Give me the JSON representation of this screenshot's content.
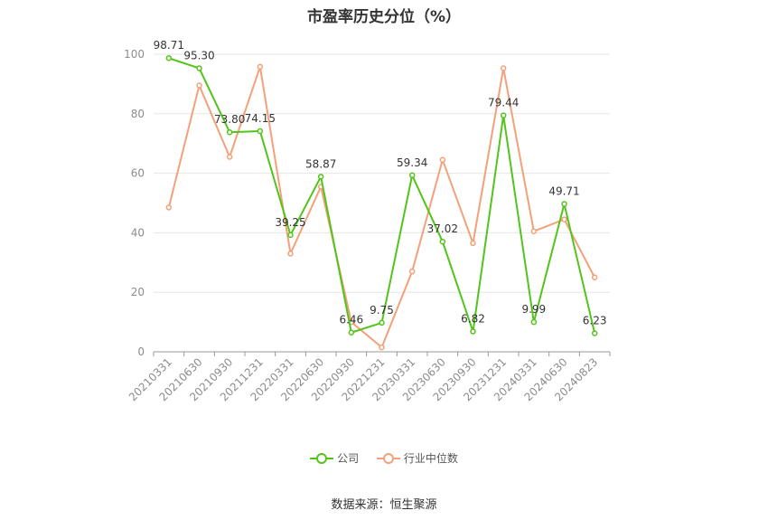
{
  "chart_data": {
    "type": "line",
    "title": "市盈率历史分位（%）",
    "categories": [
      "20210331",
      "20210630",
      "20210930",
      "20211231",
      "20220331",
      "20220630",
      "20220930",
      "20221231",
      "20230331",
      "20230630",
      "20230930",
      "20231231",
      "20240331",
      "20240630",
      "20240823"
    ],
    "series": [
      {
        "name": "公司",
        "color": "#52c41a",
        "values": [
          98.71,
          95.3,
          73.8,
          74.15,
          39.25,
          58.87,
          6.46,
          9.75,
          59.34,
          37.02,
          6.82,
          79.44,
          9.99,
          49.71,
          6.23
        ],
        "labels": [
          "98.71",
          "95.30",
          "73.80",
          "74.15",
          "39.25",
          "58.87",
          "6.46",
          "9.75",
          "59.34",
          "37.02",
          "6.82",
          "79.44",
          "9.99",
          "49.71",
          "6.23"
        ]
      },
      {
        "name": "行业中位数",
        "color": "#f4a07a",
        "values": [
          48.5,
          89.5,
          65.5,
          95.8,
          33.0,
          55.5,
          10.0,
          1.5,
          27.0,
          64.5,
          36.5,
          95.3,
          40.5,
          44.5,
          25.0
        ]
      }
    ],
    "ylim": [
      0,
      100
    ],
    "yticks": [
      0,
      20,
      40,
      60,
      80,
      100
    ],
    "grid": true,
    "legend": "bottom"
  },
  "source": "数据来源：恒生聚源"
}
